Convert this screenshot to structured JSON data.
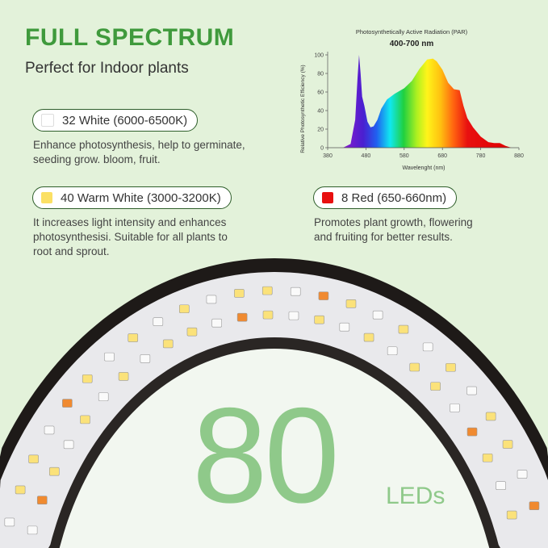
{
  "header": {
    "title": "FULL SPECTRUM",
    "subtitle": "Perfect for Indoor plants"
  },
  "led_types": [
    {
      "label": "32 White (6000-6500K)",
      "color": "#ffffff",
      "description": [
        "Enhance photosynthesis, help to germinate,",
        "seeding grow. bloom, fruit."
      ]
    },
    {
      "label": "40 Warm White (3000-3200K)",
      "color": "#fbe064",
      "description": [
        "It increases light intensity and enhances",
        "photosynthesisi. Suitable for all plants to",
        "root and sprout."
      ]
    },
    {
      "label": "8 Red (650-660nm)",
      "color": "#e81010",
      "description": [
        "Promotes plant growth, flowering",
        "and fruiting for better results."
      ]
    }
  ],
  "chart_data": {
    "type": "area",
    "title": "Photosynthetically Active Radiation (PAR)",
    "subtitle": "400-700 nm",
    "xlabel": "Wavelenght (nm)",
    "ylabel": "Relative Photosynthetic Efficiency (%)",
    "xlim": [
      380,
      880
    ],
    "ylim": [
      0,
      100
    ],
    "xticks": [
      380,
      480,
      580,
      680,
      780,
      880
    ],
    "yticks": [
      0,
      20,
      40,
      60,
      80,
      100
    ],
    "x": [
      420,
      440,
      452,
      458,
      462,
      466,
      470,
      476,
      484,
      492,
      500,
      510,
      520,
      535,
      555,
      580,
      600,
      620,
      640,
      655,
      665,
      680,
      695,
      710,
      725,
      735,
      745,
      760,
      780,
      800,
      815,
      830,
      845,
      860
    ],
    "y": [
      0,
      4,
      30,
      75,
      100,
      80,
      55,
      45,
      28,
      22,
      23,
      30,
      42,
      52,
      58,
      64,
      72,
      85,
      95,
      96,
      93,
      84,
      70,
      63,
      62,
      45,
      32,
      22,
      12,
      6,
      5,
      5,
      2,
      0
    ]
  },
  "product": {
    "count": "80",
    "unit": "LEDs"
  }
}
